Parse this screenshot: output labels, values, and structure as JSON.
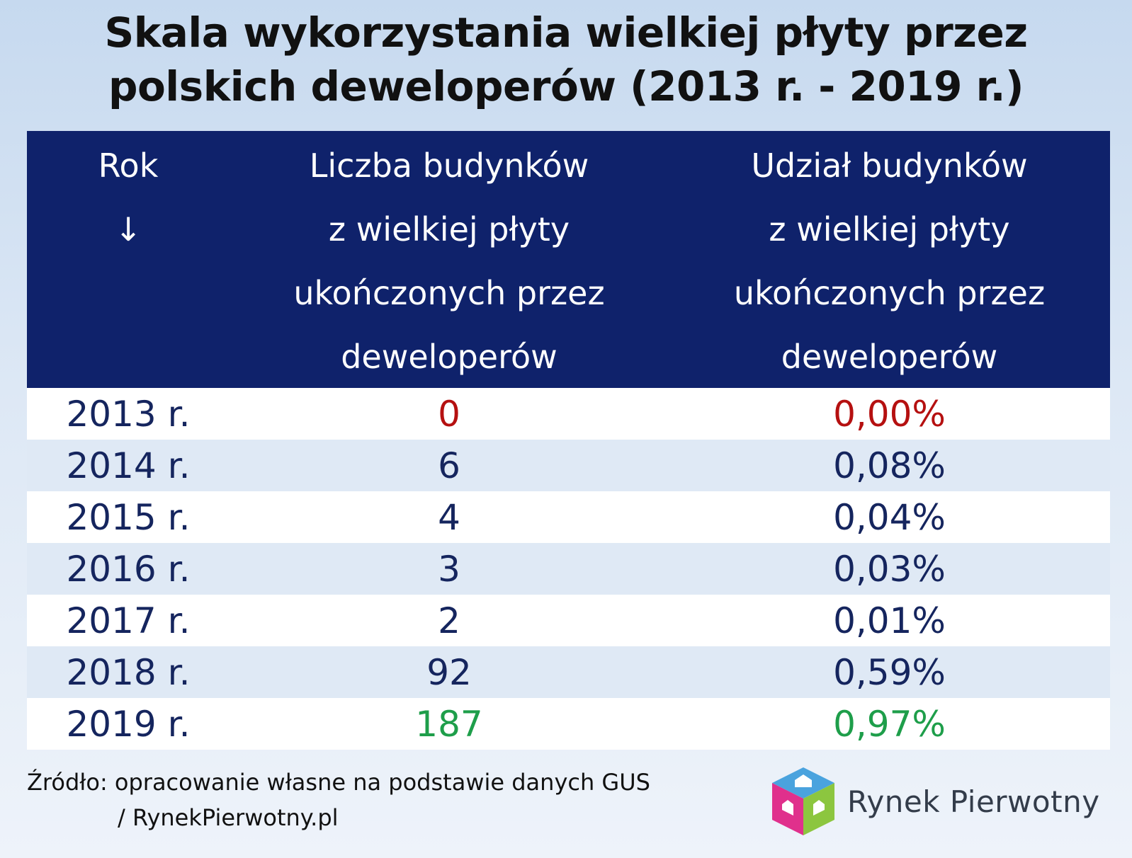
{
  "title": {
    "line1": "Skala wykorzystania wielkiej płyty przez",
    "line2": "polskich deweloperów (2013 r. - 2019 r.)"
  },
  "header": {
    "col1": {
      "line1": "Rok",
      "line2": "↓"
    },
    "col2": {
      "line1": "Liczba budynków",
      "line2": "z wielkiej płyty",
      "line3": "ukończonych przez",
      "line4": "deweloperów"
    },
    "col3": {
      "line1": "Udział budynków",
      "line2": "z wielkiej płyty",
      "line3": "ukończonych przez",
      "line4": "deweloperów"
    }
  },
  "rows": [
    {
      "year": "2013 r.",
      "count": "0",
      "share": "0,00%",
      "color": "red"
    },
    {
      "year": "2014 r.",
      "count": "6",
      "share": "0,08%",
      "color": "default"
    },
    {
      "year": "2015 r.",
      "count": "4",
      "share": "0,04%",
      "color": "default"
    },
    {
      "year": "2016 r.",
      "count": "3",
      "share": "0,03%",
      "color": "default"
    },
    {
      "year": "2017 r.",
      "count": "2",
      "share": "0,01%",
      "color": "default"
    },
    {
      "year": "2018 r.",
      "count": "92",
      "share": "0,59%",
      "color": "default"
    },
    {
      "year": "2019 r.",
      "count": "187",
      "share": "0,97%",
      "color": "green"
    }
  ],
  "footer": {
    "line1": "Źródło: opracowanie własne na podstawie danych GUS",
    "line2": "/ RynekPierwotny.pl"
  },
  "logo": {
    "text": "Rynek Pierwotny",
    "icon": "house-cube-icon"
  },
  "colors": {
    "header_bg": "#0f226b",
    "text": "#15255e",
    "highlight_low": "#b51010",
    "highlight_high": "#1e9e4a",
    "row_alt": "#dfe9f5"
  },
  "chart_data": {
    "type": "table",
    "title": "Skala wykorzystania wielkiej płyty przez polskich deweloperów (2013 r. - 2019 r.)",
    "columns": [
      "Rok",
      "Liczba budynków z wielkiej płyty ukończonych przez deweloperów",
      "Udział budynków z wielkiej płyty ukończonych przez deweloperów"
    ],
    "categories": [
      "2013 r.",
      "2014 r.",
      "2015 r.",
      "2016 r.",
      "2017 r.",
      "2018 r.",
      "2019 r."
    ],
    "series": [
      {
        "name": "Liczba budynków z wielkiej płyty ukończonych przez deweloperów",
        "values": [
          0,
          6,
          4,
          3,
          2,
          92,
          187
        ]
      },
      {
        "name": "Udział budynków z wielkiej płyty ukończonych przez deweloperów",
        "values": [
          0.0,
          0.08,
          0.04,
          0.03,
          0.01,
          0.59,
          0.97
        ]
      }
    ]
  }
}
